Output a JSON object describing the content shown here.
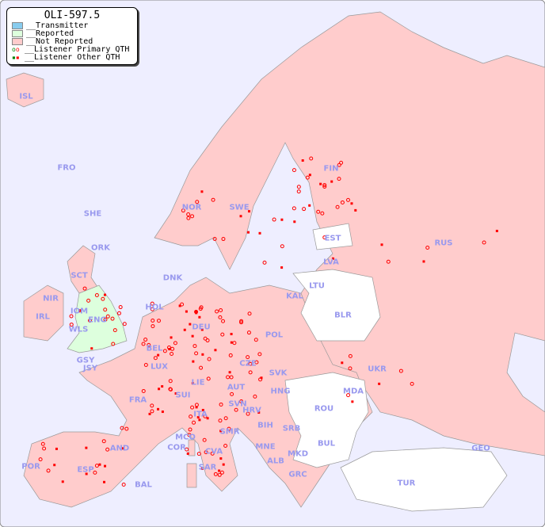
{
  "legend": {
    "title": "OLI-597.5",
    "items": [
      {
        "label": "__Transmitter",
        "color": "#88ccee"
      },
      {
        "label": "__Reported",
        "color": "#ddffdd"
      },
      {
        "label": "__Not Reported",
        "color": "#ffcccc"
      },
      {
        "label": "__Listener Primary QTH",
        "marker": "circle"
      },
      {
        "label": "__Listener Other QTH",
        "marker": "square"
      }
    ]
  },
  "colors": {
    "sea": "#eeeeff",
    "not_reported": "#ffcccc",
    "reported": "#ddffdd",
    "no_data": "#ffffff",
    "listener": "#ff0000",
    "label": "#9999ee"
  },
  "countries": [
    "ISL",
    "FRO",
    "SHE",
    "ORK",
    "NOR",
    "SWE",
    "FIN",
    "EST",
    "RUS",
    "LVA",
    "LTU",
    "DNK",
    "KAL",
    "BLR",
    "HOL",
    "DEU",
    "POL",
    "IRL",
    "SCT",
    "NIR",
    "IOM",
    "WLS",
    "ENG",
    "GSY",
    "JSY",
    "BEL",
    "LUX",
    "CZE",
    "SVK",
    "UKR",
    "FRA",
    "SUI",
    "LIE",
    "AUT",
    "HNG",
    "MDA",
    "SVN",
    "HRV",
    "ROU",
    "ITA",
    "BIH",
    "SRB",
    "SMR",
    "MCO",
    "COR",
    "BUL",
    "GEO",
    "AND",
    "MNE",
    "MKD",
    "ALB",
    "POR",
    "ESP",
    "CVA",
    "SAR",
    "GRC",
    "TUR",
    "BAL"
  ]
}
